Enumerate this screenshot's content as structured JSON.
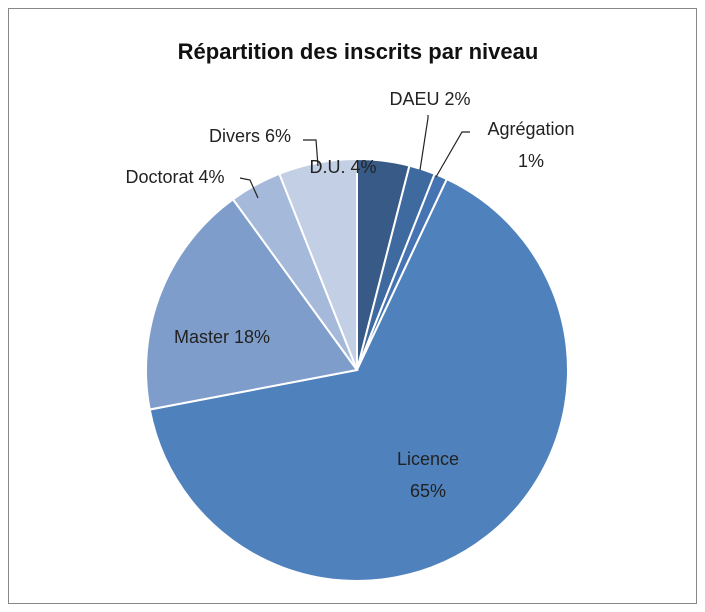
{
  "chart_data": {
    "type": "pie",
    "title": "Répartition des inscrits par niveau",
    "categories": [
      "D.U.",
      "DAEU",
      "Agrégation",
      "Licence",
      "Master",
      "Doctorat",
      "Divers"
    ],
    "values": [
      4,
      2,
      1,
      65,
      18,
      4,
      6
    ],
    "value_labels": [
      "4%",
      "2%",
      "1%",
      "65%",
      "18%",
      "4%",
      "6%"
    ],
    "colors": [
      "#375a87",
      "#3e6aa0",
      "#4674b2",
      "#4f81bd",
      "#7f9dcb",
      "#a5b9db",
      "#c3cfe4"
    ]
  }
}
